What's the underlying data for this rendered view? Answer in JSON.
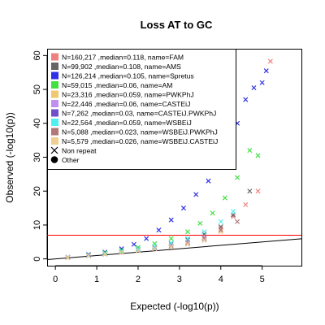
{
  "chart_data": {
    "type": "scatter",
    "title": "Loss AT to GC",
    "xlabel": "Expected (-log10(p))",
    "ylabel": "Observed (-log10(p))",
    "xlim": [
      -0.2,
      5.95
    ],
    "ylim": [
      -2.0,
      62.0
    ],
    "xticks": [
      0,
      1,
      2,
      3,
      4,
      5
    ],
    "yticks": [
      0,
      10,
      20,
      30,
      40,
      50,
      60
    ],
    "grid": false,
    "legend_position": "top-left",
    "reference_line": {
      "type": "diagonal",
      "slope": 1,
      "color": "#000000"
    },
    "threshold_line": {
      "y": 7.0,
      "color": "#ff0000"
    },
    "marker_legend": [
      {
        "symbol": "x",
        "label": "Non repeat"
      },
      {
        "symbol": "circle",
        "label": "Other"
      }
    ],
    "series": [
      {
        "name": "N=160,217 ,median=0.118, name=FAM",
        "color": "#f08080",
        "x": [
          0.3,
          0.8,
          1.2,
          1.6,
          2.0,
          2.4,
          2.8,
          3.2,
          3.6,
          4.0,
          4.3,
          4.6,
          4.9,
          5.2
        ],
        "y": [
          0.4,
          1.0,
          1.6,
          2.2,
          2.9,
          3.6,
          4.5,
          5.6,
          7.0,
          9.0,
          12.5,
          16.0,
          20.0,
          58.3
        ]
      },
      {
        "name": "N=99,902 ,median=0.108, name=AMS",
        "color": "#666666",
        "x": [
          0.3,
          0.8,
          1.2,
          1.6,
          2.0,
          2.4,
          2.8,
          3.2,
          3.6,
          4.0,
          4.3,
          4.7
        ],
        "y": [
          0.4,
          1.0,
          1.6,
          2.2,
          2.9,
          3.6,
          4.5,
          5.7,
          7.3,
          9.5,
          13.0,
          20.0
        ]
      },
      {
        "name": "N=126,214 ,median=0.105, name=Spretus",
        "color": "#3030e8",
        "x": [
          0.3,
          0.8,
          1.2,
          1.6,
          1.9,
          2.2,
          2.5,
          2.8,
          3.1,
          3.4,
          3.7,
          4.0,
          4.2,
          4.4,
          4.6,
          4.8,
          5.0,
          5.1
        ],
        "y": [
          0.5,
          1.3,
          2.0,
          3.0,
          4.3,
          6.0,
          8.5,
          11.5,
          15.0,
          19.0,
          23.0,
          28.0,
          34.0,
          40.0,
          47.0,
          50.5,
          52.0,
          55.5
        ]
      },
      {
        "name": "N=59,015 ,median=0.06, name=AM",
        "color": "#40e040",
        "x": [
          0.3,
          0.8,
          1.2,
          1.6,
          2.0,
          2.4,
          2.8,
          3.2,
          3.5,
          3.8,
          4.1,
          4.4,
          4.7,
          4.9
        ],
        "y": [
          0.4,
          1.1,
          1.8,
          2.5,
          3.4,
          4.5,
          6.0,
          8.0,
          10.5,
          13.5,
          18.0,
          24.0,
          32.0,
          30.5
        ]
      },
      {
        "name": "N=23,316 ,median=0.059, name=PWKPhJ",
        "color": "#f0c870",
        "x": [
          0.3,
          0.8,
          1.2,
          1.6,
          2.0,
          2.4,
          2.8,
          3.2,
          3.6,
          4.0
        ],
        "y": [
          0.4,
          1.0,
          1.5,
          2.0,
          2.6,
          3.2,
          3.9,
          4.8,
          6.0,
          8.0
        ]
      },
      {
        "name": "N=22,446 ,median=0.06, name=CASTEiJ",
        "color": "#c090f0",
        "x": [
          0.3,
          0.8,
          1.2,
          1.6,
          2.0,
          2.4,
          2.8,
          3.2,
          3.6,
          4.0
        ],
        "y": [
          0.4,
          1.0,
          1.5,
          2.0,
          2.6,
          3.2,
          4.0,
          5.0,
          6.3,
          8.5
        ]
      },
      {
        "name": "N=7,262 ,median=0.03, name=CASTEiJ.PWKPhJ",
        "color": "#7050c8",
        "x": [
          0.3,
          0.8,
          1.2,
          1.6,
          2.0,
          2.4,
          2.8,
          3.2,
          3.6
        ],
        "y": [
          0.4,
          0.9,
          1.4,
          1.9,
          2.4,
          3.0,
          3.6,
          4.4,
          5.5
        ]
      },
      {
        "name": "N=22,564 ,median=0.059, name=WSBEiJ",
        "color": "#50f0f0",
        "x": [
          0.3,
          0.8,
          1.2,
          1.6,
          2.0,
          2.4,
          2.8,
          3.2,
          3.6,
          4.0,
          4.3
        ],
        "y": [
          0.4,
          1.0,
          1.6,
          2.2,
          2.9,
          3.7,
          4.7,
          6.0,
          8.0,
          11.0,
          14.0
        ]
      },
      {
        "name": "N=5,088 ,median=0.023, name=WSBEiJ.PWKPhJ",
        "color": "#b07878",
        "x": [
          0.3,
          0.8,
          1.2,
          1.6,
          2.0,
          2.4,
          2.8,
          3.2,
          3.6,
          4.0,
          4.4
        ],
        "y": [
          0.4,
          0.9,
          1.4,
          1.9,
          2.4,
          3.0,
          3.7,
          4.6,
          6.0,
          8.5,
          11.0
        ]
      },
      {
        "name": "N=5,579 ,median=0.026, name=WSBEiJ.CASTEiJ",
        "color": "#f0d090",
        "x": [
          0.3,
          0.8,
          1.2,
          1.6,
          2.0,
          2.4,
          2.8,
          3.2,
          3.6
        ],
        "y": [
          0.4,
          0.9,
          1.4,
          1.9,
          2.4,
          3.0,
          3.6,
          4.4,
          5.5
        ]
      }
    ]
  }
}
